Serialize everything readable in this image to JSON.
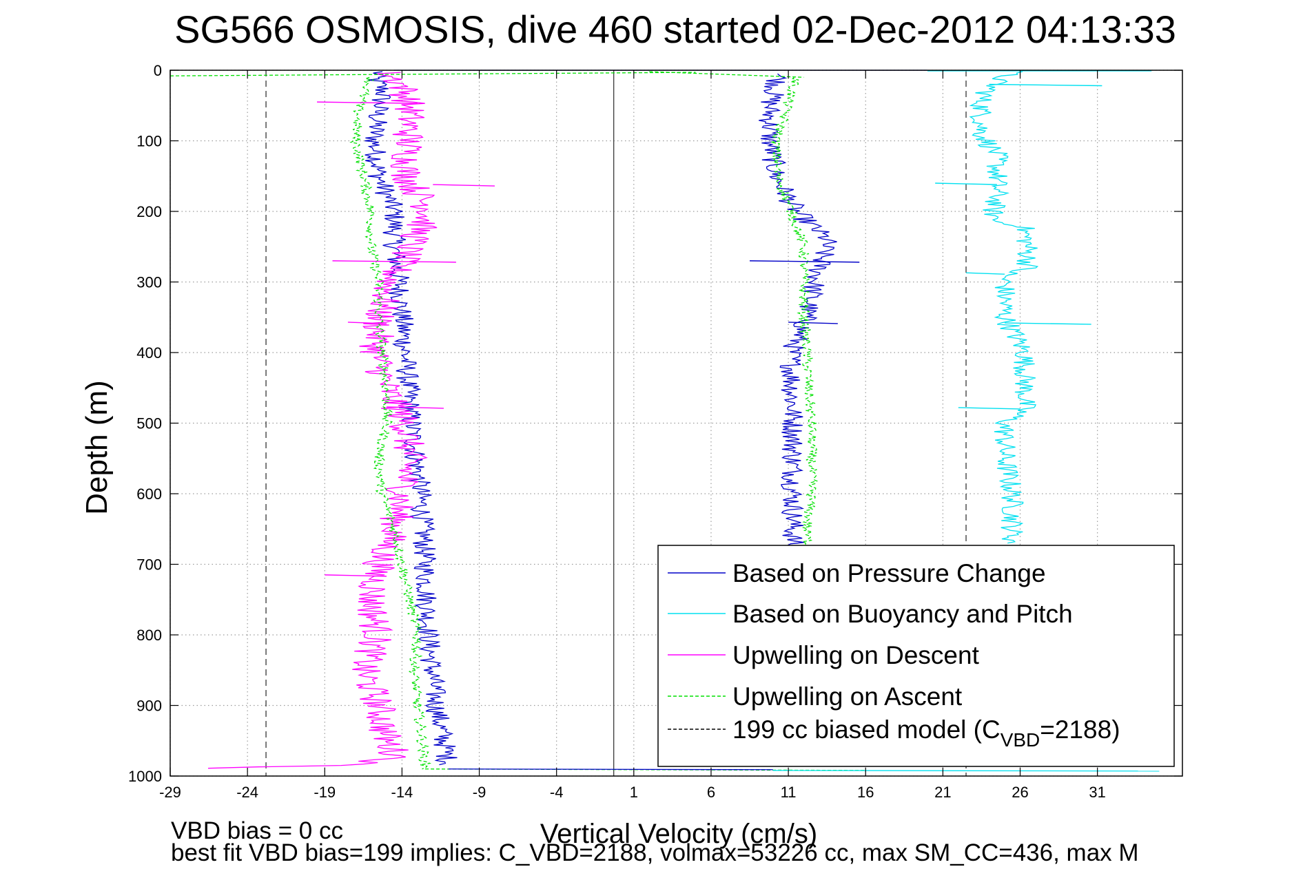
{
  "chart_data": {
    "type": "line",
    "title": "SG566 OSMOSIS, dive 460 started 02-Dec-2012 04:13:33",
    "xlabel": "Vertical Velocity (cm/s)",
    "ylabel": "Depth (m)",
    "xlim": [
      -29,
      36.5
    ],
    "ylim": [
      0,
      1000
    ],
    "y_reversed": true,
    "grid": true,
    "x_ticks": [
      -29,
      -24,
      -19,
      -14,
      -9,
      -4,
      1,
      6,
      11,
      16,
      21,
      26,
      31
    ],
    "x_tick_labels": [
      "-29",
      "-24",
      "-19",
      "-14",
      "-9",
      "-4",
      "1",
      "6",
      "11",
      "16",
      "21",
      "26",
      "31"
    ],
    "y_ticks": [
      0,
      100,
      200,
      300,
      400,
      500,
      600,
      700,
      800,
      900,
      1000
    ],
    "y_tick_labels": [
      "0",
      "100",
      "200",
      "300",
      "400",
      "500",
      "600",
      "700",
      "800",
      "900",
      "1000"
    ],
    "legend_position": "bottom-right",
    "reference_lines": {
      "zero": -0.3,
      "model_left": -22.8,
      "model_right": 22.5
    },
    "series": [
      {
        "name": "Based on Pressure Change",
        "color": "#0000c8",
        "dash": "solid",
        "segments": [
          {
            "y": [
              2,
              10,
              30,
              60,
              100,
              150,
              200,
              250,
              300,
              400,
              500,
              600,
              700,
              800,
              900,
              960,
              985
            ],
            "x": [
              -15.5,
              -15.8,
              -15.2,
              -15.6,
              -15.8,
              -15.5,
              -14.5,
              -14.5,
              -14.2,
              -13.8,
              -13.4,
              -12.8,
              -12.5,
              -12.3,
              -11.8,
              -11.2,
              -11.0
            ]
          },
          {
            "y": [
              5,
              20,
              50,
              100,
              150,
              200,
              240,
              280,
              320,
              360,
              400,
              500,
              600,
              700
            ],
            "x": [
              10.5,
              10.2,
              9.8,
              9.8,
              10.2,
              11.5,
              13.5,
              13.0,
              12.5,
              12.0,
              11.2,
              11.3,
              11.3,
              11.3
            ]
          }
        ]
      },
      {
        "name": "Based on Buoyancy and Pitch",
        "color": "#00e0f0",
        "dash": "solid",
        "segments": [
          {
            "y": [
              2,
              15,
              40,
              60,
              90,
              120,
              150,
              180,
              200,
              215,
              220,
              250,
              280,
              290,
              300,
              350,
              400,
              450,
              480,
              500,
              550,
              600,
              650,
              670
            ],
            "x": [
              25.5,
              24.5,
              23.5,
              23.5,
              23.5,
              24.5,
              24.5,
              24.5,
              24.2,
              24.5,
              26.2,
              26.5,
              26.5,
              25.0,
              25.0,
              25.0,
              26.3,
              26.3,
              26.3,
              25.0,
              25.0,
              25.5,
              25.5,
              25.5
            ]
          }
        ]
      },
      {
        "name": "Upwelling on Descent",
        "color": "#ff00ff",
        "dash": "solid",
        "segments": [
          {
            "y": [
              3,
              20,
              50,
              100,
              150,
              200,
              250,
              300,
              350,
              400,
              450,
              500,
              550,
              600,
              650,
              700,
              750,
              800,
              850,
              900,
              950,
              975,
              985,
              990
            ],
            "x": [
              -15.0,
              -14.0,
              -13.5,
              -13.6,
              -13.7,
              -12.2,
              -13.5,
              -14.8,
              -15.5,
              -15.7,
              -15.0,
              -13.8,
              -13.5,
              -14.0,
              -14.5,
              -15.5,
              -16.0,
              -15.6,
              -16.5,
              -15.5,
              -15.0,
              -14.2,
              -18.0,
              -28.5
            ]
          }
        ]
      },
      {
        "name": "Upwelling on Ascent",
        "color": "#00e000",
        "dash": "dashed",
        "segments": [
          {
            "y": [
              990,
              950,
              900,
              850,
              800,
              750,
              700,
              650,
              600,
              550,
              500,
              450,
              400,
              350,
              300,
              250,
              200,
              150,
              100,
              50,
              10
            ],
            "x": [
              -12.5,
              -12.7,
              -13.0,
              -13.2,
              -13.0,
              -13.5,
              -14.0,
              -14.5,
              -15.3,
              -15.5,
              -15.0,
              -15.0,
              -15.3,
              -15.5,
              -15.5,
              -16.0,
              -16.0,
              -16.5,
              -17.0,
              -16.8,
              -16.0
            ]
          },
          {
            "y": [
              700,
              650,
              600,
              550,
              500,
              450,
              400,
              350,
              300,
              250,
              200,
              150,
              100,
              60,
              30,
              10
            ],
            "x": [
              12.3,
              12.2,
              12.5,
              12.5,
              12.5,
              12.3,
              12.2,
              12.0,
              12.0,
              12.0,
              11.2,
              10.3,
              10.2,
              10.8,
              11.2,
              11.5
            ]
          }
        ]
      }
    ],
    "spikes": [
      {
        "series": "Based on Pressure Change",
        "y": 270,
        "x": [
          8.5,
          15.6
        ]
      },
      {
        "series": "Based on Pressure Change",
        "y": 357,
        "x": [
          11.0,
          14.2
        ]
      },
      {
        "series": "Based on Buoyancy and Pitch",
        "y": 358,
        "x": [
          25.0,
          30.6
        ]
      },
      {
        "series": "Based on Buoyancy and Pitch",
        "y": 478,
        "x": [
          22.0,
          26.0
        ]
      },
      {
        "series": "Based on Buoyancy and Pitch",
        "y": 287,
        "x": [
          22.5,
          25.0
        ]
      },
      {
        "series": "Based on Buoyancy and Pitch",
        "y": 160,
        "x": [
          20.5,
          24.5
        ]
      },
      {
        "series": "Based on Buoyancy and Pitch",
        "y": 20,
        "x": [
          24.0,
          31.3
        ]
      },
      {
        "series": "Upwelling on Descent",
        "y": 162,
        "x": [
          -12.0,
          -8.0
        ]
      },
      {
        "series": "Upwelling on Descent",
        "y": 270,
        "x": [
          -18.5,
          -10.5
        ]
      },
      {
        "series": "Upwelling on Descent",
        "y": 357,
        "x": [
          -17.5,
          -15.0
        ]
      },
      {
        "series": "Upwelling on Descent",
        "y": 477,
        "x": [
          -15.0,
          -11.3
        ]
      },
      {
        "series": "Upwelling on Descent",
        "y": 715,
        "x": [
          -19.0,
          -15.0
        ]
      },
      {
        "series": "Upwelling on Descent",
        "y": 45,
        "x": [
          -19.5,
          -13.0
        ]
      }
    ],
    "legend": [
      {
        "label": "Based on Pressure Change",
        "color": "#0000c8",
        "dash": "solid"
      },
      {
        "label": "Based on Buoyancy and Pitch",
        "color": "#00e0f0",
        "dash": "solid"
      },
      {
        "label": "Upwelling on Descent",
        "color": "#ff00ff",
        "dash": "solid"
      },
      {
        "label": "Upwelling on Ascent",
        "color": "#00e000",
        "dash": "dashed"
      },
      {
        "label_main": "199 cc biased model (C",
        "label_sub": "VBD",
        "label_end": "=2188)",
        "color": "#000000",
        "dash": "dashed"
      }
    ],
    "notes": [
      "VBD bias = 0 cc",
      "best fit VBD bias=199 implies: C_VBD=2188, volmax=53226 cc, max SM_CC=436, max M"
    ]
  }
}
